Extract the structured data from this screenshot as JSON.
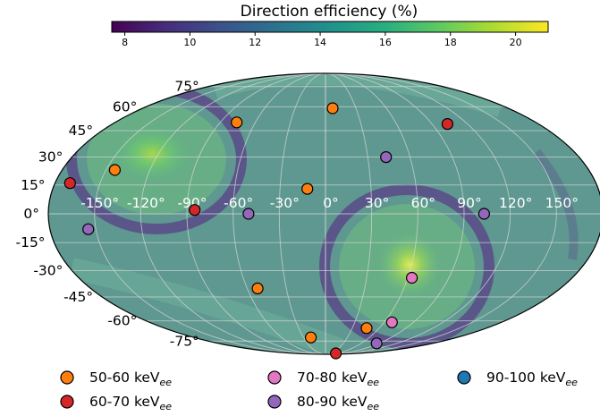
{
  "colorbar": {
    "label": "Direction efficiency (%)",
    "min": 7.6,
    "max": 21.0,
    "ticks": [
      "8",
      "10",
      "12",
      "14",
      "16",
      "18",
      "20"
    ],
    "tick_values": [
      8,
      10,
      12,
      14,
      16,
      18,
      20
    ],
    "colormap": "viridis"
  },
  "chart_data": {
    "type": "scatter",
    "projection": "mollweide",
    "background": "heatmap of direction efficiency (%)",
    "grid": true,
    "lat_ticks": [
      "75°",
      "60°",
      "45°",
      "30°",
      "15°",
      "0°",
      "-15°",
      "-30°",
      "-45°",
      "-60°",
      "-75°"
    ],
    "lat_tick_values": [
      75,
      60,
      45,
      30,
      15,
      0,
      -15,
      -30,
      -45,
      -60,
      -75
    ],
    "lon_ticks": [
      "-150°",
      "-120°",
      "-90°",
      "-60°",
      "-30°",
      "0°",
      "30°",
      "60°",
      "90°",
      "120°",
      "150°"
    ],
    "lon_tick_values": [
      -150,
      -120,
      -90,
      -60,
      -30,
      0,
      30,
      60,
      90,
      120,
      150
    ],
    "legend_position": "bottom",
    "series": [
      {
        "name": "50-60 keV",
        "sub": "ee",
        "color": "#ff7f0e",
        "points": [
          [
            -144,
            23
          ],
          [
            -76,
            50
          ],
          [
            7,
            59
          ],
          [
            -12,
            13
          ],
          [
            -52,
            -40
          ],
          [
            -20,
            -72
          ],
          [
            46,
            -65
          ]
        ]
      },
      {
        "name": "60-70 keV",
        "sub": "ee",
        "color": "#d62728",
        "points": [
          [
            -170,
            16
          ],
          [
            -85,
            2
          ],
          [
            103,
            49
          ],
          [
            60,
            -88
          ]
        ]
      },
      {
        "name": "70-80 keV",
        "sub": "ee",
        "color": "#e377c2",
        "points": [
          [
            63,
            -34
          ],
          [
            68,
            -61
          ]
        ]
      },
      {
        "name": "80-90 keV",
        "sub": "ee",
        "color": "#9467bd",
        "points": [
          [
            -155,
            -8
          ],
          [
            -50,
            0
          ],
          [
            43,
            30
          ],
          [
            103,
            0
          ],
          [
            86,
            -77
          ]
        ]
      },
      {
        "name": "90-100 keV",
        "sub": "ee",
        "color": "#1f77b4",
        "points": []
      }
    ]
  }
}
